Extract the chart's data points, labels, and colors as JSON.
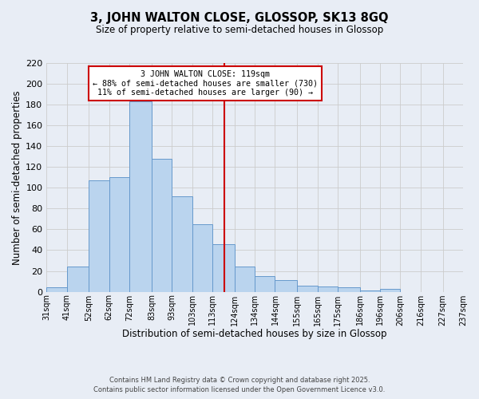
{
  "title": "3, JOHN WALTON CLOSE, GLOSSOP, SK13 8GQ",
  "subtitle": "Size of property relative to semi-detached houses in Glossop",
  "xlabel": "Distribution of semi-detached houses by size in Glossop",
  "ylabel": "Number of semi-detached properties",
  "bar_values": [
    4,
    24,
    107,
    110,
    183,
    128,
    92,
    65,
    46,
    24,
    15,
    11,
    6,
    5,
    4,
    1,
    3
  ],
  "bin_edges": [
    31,
    41,
    52,
    62,
    72,
    83,
    93,
    103,
    113,
    124,
    134,
    144,
    155,
    165,
    175,
    186,
    196,
    206,
    216,
    227,
    237
  ],
  "tick_labels": [
    "31sqm",
    "41sqm",
    "52sqm",
    "62sqm",
    "72sqm",
    "83sqm",
    "93sqm",
    "103sqm",
    "113sqm",
    "124sqm",
    "134sqm",
    "144sqm",
    "155sqm",
    "165sqm",
    "175sqm",
    "186sqm",
    "196sqm",
    "206sqm",
    "216sqm",
    "227sqm",
    "237sqm"
  ],
  "bar_color": "#bad4ee",
  "bar_edge_color": "#6699cc",
  "vline_x": 119,
  "vline_color": "#cc0000",
  "annotation_title": "3 JOHN WALTON CLOSE: 119sqm",
  "annotation_line1": "← 88% of semi-detached houses are smaller (730)",
  "annotation_line2": "11% of semi-detached houses are larger (90) →",
  "annotation_box_color": "#cc0000",
  "annotation_bg": "#ffffff",
  "grid_color": "#cccccc",
  "background_color": "#e8edf5",
  "footer_line1": "Contains HM Land Registry data © Crown copyright and database right 2025.",
  "footer_line2": "Contains public sector information licensed under the Open Government Licence v3.0.",
  "ylim": [
    0,
    220
  ],
  "yticks": [
    0,
    20,
    40,
    60,
    80,
    100,
    120,
    140,
    160,
    180,
    200,
    220
  ]
}
